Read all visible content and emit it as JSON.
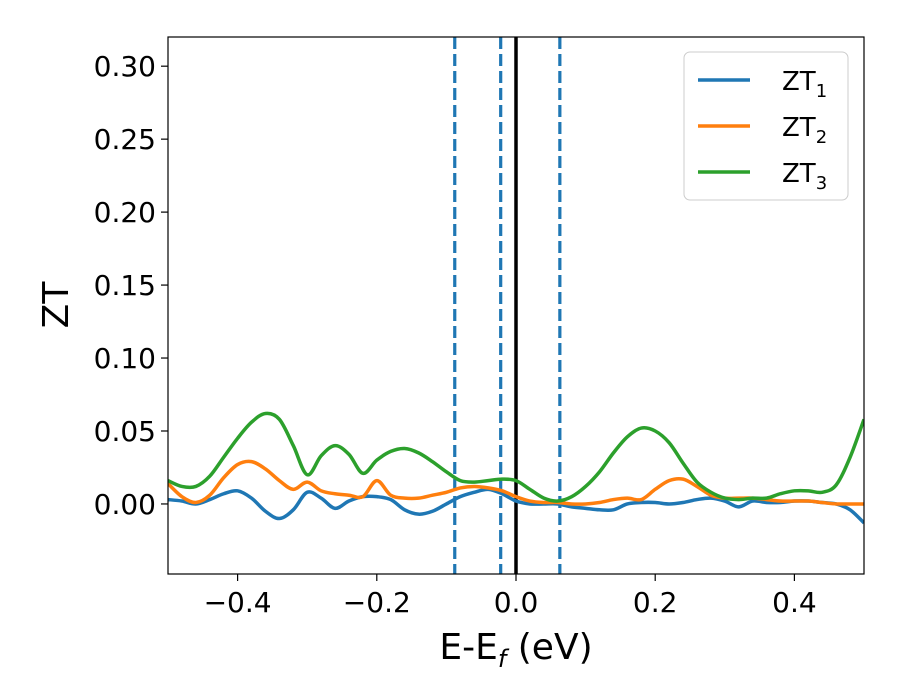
{
  "chart_data": {
    "type": "line",
    "xlabel": {
      "main": "E-E",
      "sub": "f",
      "suffix": " (eV)"
    },
    "ylabel": "ZT",
    "xlim": [
      -0.5,
      0.5
    ],
    "ylim": [
      -0.048,
      0.32
    ],
    "xticks": [
      {
        "v": -0.4,
        "label": "−0.4"
      },
      {
        "v": -0.2,
        "label": "−0.2"
      },
      {
        "v": 0.0,
        "label": "0.0"
      },
      {
        "v": 0.2,
        "label": "0.2"
      },
      {
        "v": 0.4,
        "label": "0.4"
      }
    ],
    "yticks": [
      {
        "v": 0.0,
        "label": "0.00"
      },
      {
        "v": 0.05,
        "label": "0.05"
      },
      {
        "v": 0.1,
        "label": "0.10"
      },
      {
        "v": 0.15,
        "label": "0.15"
      },
      {
        "v": 0.2,
        "label": "0.20"
      },
      {
        "v": 0.25,
        "label": "0.25"
      },
      {
        "v": 0.3,
        "label": "0.30"
      }
    ],
    "grid": false,
    "legend_position": "top-right",
    "vlines": [
      {
        "x": -0.088,
        "style": "dashed",
        "color": "#1f77b4"
      },
      {
        "x": -0.022,
        "style": "dashed",
        "color": "#1f77b4"
      },
      {
        "x": 0.0,
        "style": "solid",
        "color": "#000000"
      },
      {
        "x": 0.063,
        "style": "dashed",
        "color": "#1f77b4"
      }
    ],
    "series": [
      {
        "name": "ZT",
        "sub": "1",
        "color": "#1f77b4",
        "x": [
          -0.5,
          -0.48,
          -0.46,
          -0.44,
          -0.42,
          -0.4,
          -0.38,
          -0.36,
          -0.34,
          -0.32,
          -0.3,
          -0.28,
          -0.26,
          -0.24,
          -0.22,
          -0.2,
          -0.18,
          -0.16,
          -0.14,
          -0.12,
          -0.1,
          -0.08,
          -0.06,
          -0.04,
          -0.02,
          0.0,
          0.02,
          0.04,
          0.06,
          0.08,
          0.1,
          0.12,
          0.14,
          0.16,
          0.18,
          0.2,
          0.22,
          0.24,
          0.26,
          0.28,
          0.3,
          0.32,
          0.34,
          0.36,
          0.38,
          0.4,
          0.42,
          0.44,
          0.46,
          0.48,
          0.5
        ],
        "y": [
          0.003,
          0.002,
          0.0,
          0.003,
          0.007,
          0.009,
          0.004,
          -0.005,
          -0.01,
          -0.004,
          0.008,
          0.004,
          -0.003,
          0.002,
          0.005,
          0.005,
          0.003,
          -0.004,
          -0.007,
          -0.005,
          0.0,
          0.005,
          0.008,
          0.01,
          0.007,
          0.002,
          0.0,
          0.0,
          0.0,
          -0.002,
          -0.003,
          -0.004,
          -0.004,
          0.0,
          0.001,
          0.001,
          0.0,
          0.001,
          0.003,
          0.004,
          0.002,
          -0.002,
          0.002,
          0.001,
          0.001,
          0.002,
          0.002,
          0.001,
          0.0,
          -0.004,
          -0.013
        ]
      },
      {
        "name": "ZT",
        "sub": "2",
        "color": "#ff7f0e",
        "x": [
          -0.5,
          -0.48,
          -0.46,
          -0.44,
          -0.42,
          -0.4,
          -0.38,
          -0.36,
          -0.34,
          -0.32,
          -0.3,
          -0.28,
          -0.26,
          -0.24,
          -0.22,
          -0.2,
          -0.18,
          -0.16,
          -0.14,
          -0.12,
          -0.1,
          -0.08,
          -0.06,
          -0.04,
          -0.02,
          0.0,
          0.02,
          0.04,
          0.06,
          0.08,
          0.1,
          0.12,
          0.14,
          0.16,
          0.18,
          0.2,
          0.22,
          0.24,
          0.26,
          0.28,
          0.3,
          0.32,
          0.34,
          0.36,
          0.38,
          0.4,
          0.42,
          0.44,
          0.46,
          0.48,
          0.5
        ],
        "y": [
          0.014,
          0.005,
          0.001,
          0.006,
          0.018,
          0.027,
          0.029,
          0.024,
          0.016,
          0.01,
          0.015,
          0.009,
          0.007,
          0.006,
          0.005,
          0.016,
          0.006,
          0.004,
          0.004,
          0.006,
          0.008,
          0.011,
          0.012,
          0.011,
          0.009,
          0.005,
          0.002,
          0.001,
          0.001,
          0.0,
          0.0,
          0.001,
          0.003,
          0.004,
          0.003,
          0.01,
          0.016,
          0.017,
          0.012,
          0.006,
          0.004,
          0.004,
          0.004,
          0.003,
          0.002,
          0.002,
          0.002,
          0.001,
          0.0,
          0.0,
          0.0
        ]
      },
      {
        "name": "ZT",
        "sub": "3",
        "color": "#2ca02c",
        "x": [
          -0.5,
          -0.48,
          -0.46,
          -0.44,
          -0.42,
          -0.4,
          -0.38,
          -0.36,
          -0.34,
          -0.32,
          -0.3,
          -0.28,
          -0.26,
          -0.24,
          -0.22,
          -0.2,
          -0.18,
          -0.16,
          -0.14,
          -0.12,
          -0.1,
          -0.08,
          -0.06,
          -0.04,
          -0.02,
          0.0,
          0.02,
          0.04,
          0.06,
          0.08,
          0.1,
          0.12,
          0.14,
          0.16,
          0.18,
          0.2,
          0.22,
          0.24,
          0.26,
          0.28,
          0.3,
          0.32,
          0.34,
          0.36,
          0.38,
          0.4,
          0.42,
          0.44,
          0.46,
          0.48,
          0.5
        ],
        "y": [
          0.016,
          0.012,
          0.012,
          0.019,
          0.032,
          0.045,
          0.056,
          0.062,
          0.058,
          0.04,
          0.02,
          0.033,
          0.04,
          0.034,
          0.021,
          0.03,
          0.036,
          0.038,
          0.035,
          0.029,
          0.022,
          0.016,
          0.015,
          0.016,
          0.017,
          0.016,
          0.01,
          0.004,
          0.002,
          0.005,
          0.012,
          0.022,
          0.035,
          0.046,
          0.052,
          0.05,
          0.042,
          0.028,
          0.015,
          0.008,
          0.004,
          0.003,
          0.004,
          0.004,
          0.007,
          0.009,
          0.009,
          0.008,
          0.013,
          0.032,
          0.058
        ]
      }
    ]
  }
}
